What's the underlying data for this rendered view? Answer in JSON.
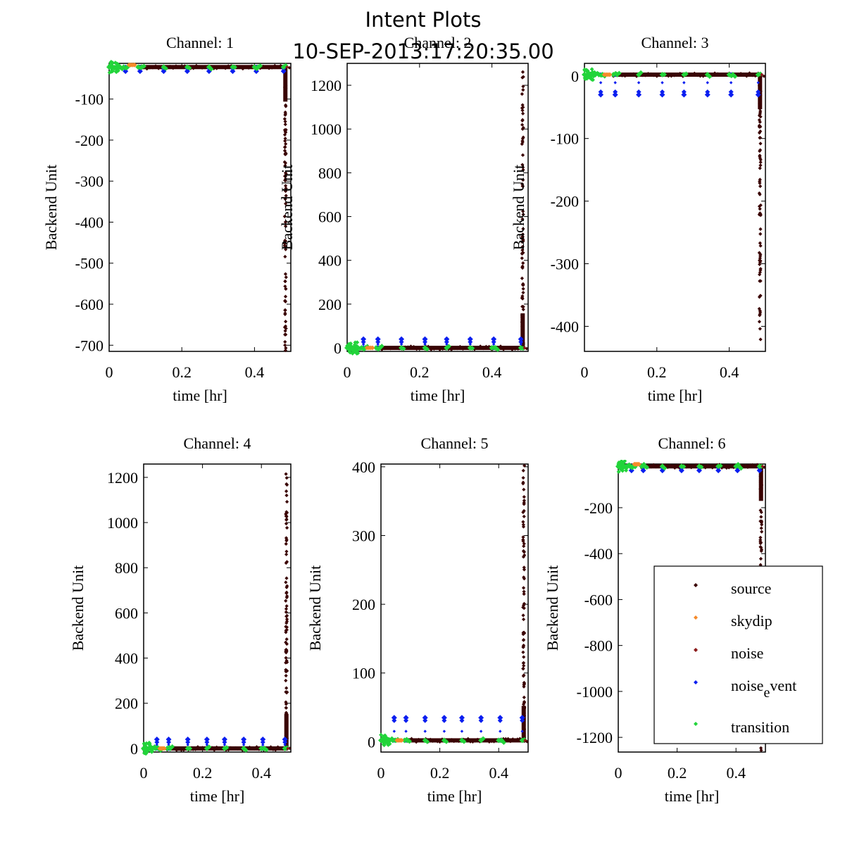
{
  "figure": {
    "title": "Intent Plots",
    "subtitle": "10-SEP-2013:17:20:35.00"
  },
  "colors": {
    "source": "#3a0303",
    "skydip": "#f58a2a",
    "noise": "#8b1a1a",
    "noise_event": "#0a1ef0",
    "transition": "#22d43a"
  },
  "legend": {
    "location": "inside lower-right of Channel 6",
    "entries": [
      {
        "key": "source",
        "label": "source"
      },
      {
        "key": "skydip",
        "label": "skydip"
      },
      {
        "key": "noise",
        "label": "noise"
      },
      {
        "key": "noise_event",
        "label": "noise",
        "sub": "e",
        "rest": "vent"
      },
      {
        "key": "transition",
        "label": "transition"
      }
    ]
  },
  "chart_data": [
    {
      "type": "scatter",
      "title": "Channel: 1",
      "xlabel": "time [hr]",
      "ylabel": "Backend Unit",
      "xlim": [
        0,
        0.5
      ],
      "ylim": [
        -715,
        -13
      ],
      "xticks": [
        "0",
        "0.2",
        "0.4"
      ],
      "xtick_values": [
        0,
        0.2,
        0.4
      ],
      "yticks": [
        "-100",
        "-200",
        "-300",
        "-400",
        "-500",
        "-600",
        "-700"
      ],
      "ytick_values": [
        -100,
        -200,
        -300,
        -400,
        -500,
        -600,
        -700
      ],
      "baseline": -22,
      "event_offset": -10,
      "event_dir": -1,
      "spike": {
        "x": 0.485,
        "from": -22,
        "to": -715
      },
      "series": [
        "source",
        "skydip",
        "noise",
        "noise_event",
        "transition"
      ]
    },
    {
      "type": "scatter",
      "title": "Channel: 2",
      "xlabel": "time [hr]",
      "ylabel": "Backend Unit",
      "xlim": [
        0,
        0.5
      ],
      "ylim": [
        -16,
        1300
      ],
      "xticks": [
        "0",
        "0.2",
        "0.4"
      ],
      "xtick_values": [
        0,
        0.2,
        0.4
      ],
      "yticks": [
        "0",
        "200",
        "400",
        "600",
        "800",
        "1000",
        "1200"
      ],
      "ytick_values": [
        0,
        200,
        400,
        600,
        800,
        1000,
        1200
      ],
      "baseline": 0,
      "event_offset": 40,
      "event_dir": 1,
      "spike": {
        "x": 0.485,
        "from": 0,
        "to": 1300
      },
      "series": [
        "source",
        "skydip",
        "noise",
        "noise_event",
        "transition"
      ]
    },
    {
      "type": "scatter",
      "title": "Channel: 3",
      "xlabel": "time [hr]",
      "ylabel": "Backend Unit",
      "xlim": [
        0,
        0.5
      ],
      "ylim": [
        -440,
        20
      ],
      "xticks": [
        "0",
        "0.2",
        "0.4"
      ],
      "xtick_values": [
        0,
        0.2,
        0.4
      ],
      "yticks": [
        "0",
        "-100",
        "-200",
        "-300",
        "-400"
      ],
      "ytick_values": [
        0,
        -100,
        -200,
        -300,
        -400
      ],
      "baseline": 2,
      "event_offset": -32,
      "event_dir": -1,
      "spike": {
        "x": 0.485,
        "from": 2,
        "to": -440
      },
      "series": [
        "source",
        "skydip",
        "noise",
        "noise_event",
        "transition"
      ]
    },
    {
      "type": "scatter",
      "title": "Channel: 4",
      "xlabel": "time [hr]",
      "ylabel": "Backend Unit",
      "xlim": [
        0,
        0.5
      ],
      "ylim": [
        -16,
        1259
      ],
      "xticks": [
        "0",
        "0.2",
        "0.4"
      ],
      "xtick_values": [
        0,
        0.2,
        0.4
      ],
      "yticks": [
        "0",
        "200",
        "400",
        "600",
        "800",
        "1000",
        "1200"
      ],
      "ytick_values": [
        0,
        200,
        400,
        600,
        800,
        1000,
        1200
      ],
      "baseline": 0,
      "event_offset": 40,
      "event_dir": 1,
      "spike": {
        "x": 0.485,
        "from": 0,
        "to": 1259
      },
      "series": [
        "source",
        "skydip",
        "noise",
        "noise_event",
        "transition"
      ]
    },
    {
      "type": "scatter",
      "title": "Channel: 5",
      "xlabel": "time [hr]",
      "ylabel": "Backend Unit",
      "xlim": [
        0,
        0.5
      ],
      "ylim": [
        -15,
        404
      ],
      "xticks": [
        "0",
        "0.2",
        "0.4"
      ],
      "xtick_values": [
        0,
        0.2,
        0.4
      ],
      "yticks": [
        "0",
        "100",
        "200",
        "300",
        "400"
      ],
      "ytick_values": [
        0,
        100,
        200,
        300,
        400
      ],
      "baseline": 2,
      "event_offset": 33,
      "event_dir": 1,
      "spike": {
        "x": 0.485,
        "from": 2,
        "to": 404
      },
      "series": [
        "source",
        "skydip",
        "noise",
        "noise_event",
        "transition"
      ]
    },
    {
      "type": "scatter",
      "title": "Channel: 6",
      "xlabel": "time [hr]",
      "ylabel": "Backend Unit",
      "xlim": [
        0,
        0.5
      ],
      "ylim": [
        -1264,
        -10
      ],
      "xticks": [
        "0",
        "0.2",
        "0.4"
      ],
      "xtick_values": [
        0,
        0.2,
        0.4
      ],
      "yticks": [
        "-200",
        "-400",
        "-600",
        "-800",
        "-1000",
        "-1200"
      ],
      "ytick_values": [
        -200,
        -400,
        -600,
        -800,
        -1000,
        -1200
      ],
      "baseline": -20,
      "event_offset": -18,
      "event_dir": -1,
      "spike": {
        "x": 0.485,
        "from": -20,
        "to": -1264
      },
      "series": [
        "source",
        "skydip",
        "noise",
        "noise_event",
        "transition"
      ],
      "has_legend": true
    }
  ],
  "event_times": [
    0.045,
    0.085,
    0.15,
    0.215,
    0.275,
    0.34,
    0.405,
    0.48
  ],
  "transition_times": [
    0.0,
    0.01,
    0.02,
    0.03,
    0.04,
    0.05,
    0.08,
    0.09,
    0.15,
    0.215,
    0.275,
    0.34,
    0.4,
    0.41,
    0.48
  ],
  "skydip_times": [
    0.055,
    0.06,
    0.065,
    0.07
  ]
}
